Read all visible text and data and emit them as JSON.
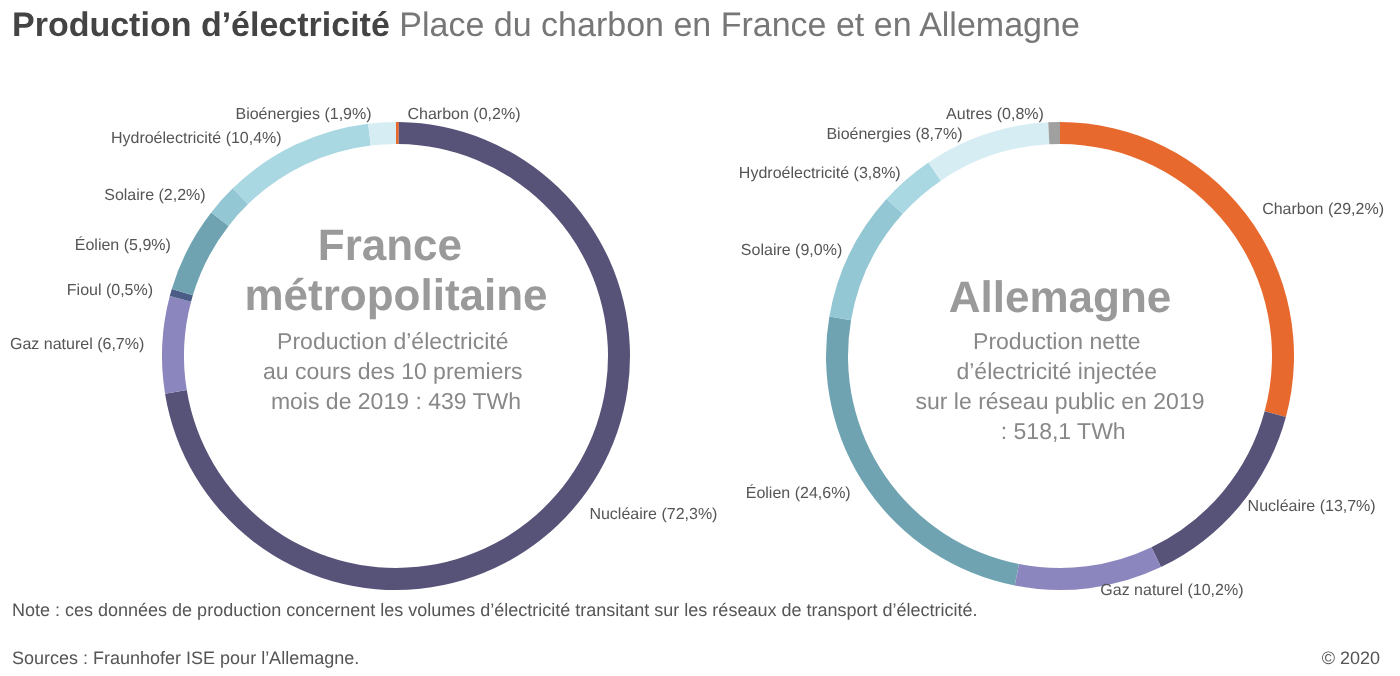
{
  "chart_data": [
    {
      "type": "donut",
      "title": "France métropolitaine",
      "subtitle": "Production d’électricité au cours des 10 premiers mois de 2019 : 439 TWh",
      "categories": [
        "Charbon",
        "Nucléaire",
        "Gaz naturel",
        "Fioul",
        "Éolien",
        "Solaire",
        "Hydroélectricité",
        "Bioénergies"
      ],
      "values": [
        0.2,
        72.3,
        6.7,
        0.5,
        5.9,
        2.2,
        10.4,
        1.9
      ],
      "value_labels": [
        "(0,2%)",
        "(72,3%)",
        "(6,7%)",
        "(0,5%)",
        "(5,9%)",
        "(2,2%)",
        "(10,4%)",
        "(1,9%)"
      ],
      "colors": [
        "#e8692e",
        "#575278",
        "#8c86bf",
        "#4b5d86",
        "#6fa3b2",
        "#93c7d3",
        "#a9d8e3",
        "#d6edf3"
      ],
      "legend": false,
      "annotations": [
        "Production d’électricité",
        "Place du charbon en France et en Allemagne",
        "Note : ces données de production concernent les volumes d’électricité transitant sur les réseaux de transport d’électricité.",
        "Sources : Fraunhofer ISE pour l’Allemagne.",
        "© 2020"
      ]
    },
    {
      "type": "donut",
      "title": "Allemagne",
      "subtitle": "Production nette d’électricité injectée sur le réseau public en 2019 : 518,1 TWh",
      "categories": [
        "Charbon",
        "Nucléaire",
        "Gaz naturel",
        "Éolien",
        "Solaire",
        "Hydroélectricité",
        "Bioénergies",
        "Autres"
      ],
      "values": [
        29.2,
        13.7,
        10.2,
        24.6,
        9.0,
        3.8,
        8.7,
        0.8
      ],
      "value_labels": [
        "(29,2%)",
        "(13,7%)",
        "(10,2%)",
        "(24,6%)",
        "(9,0%)",
        "(3,8%)",
        "(8,7%)",
        "(0,8%)"
      ],
      "colors": [
        "#e8692e",
        "#575278",
        "#8c86bf",
        "#6fa3b2",
        "#93c7d3",
        "#a9d8e3",
        "#d6edf3",
        "#a0a0a0"
      ],
      "legend": false
    }
  ]
}
